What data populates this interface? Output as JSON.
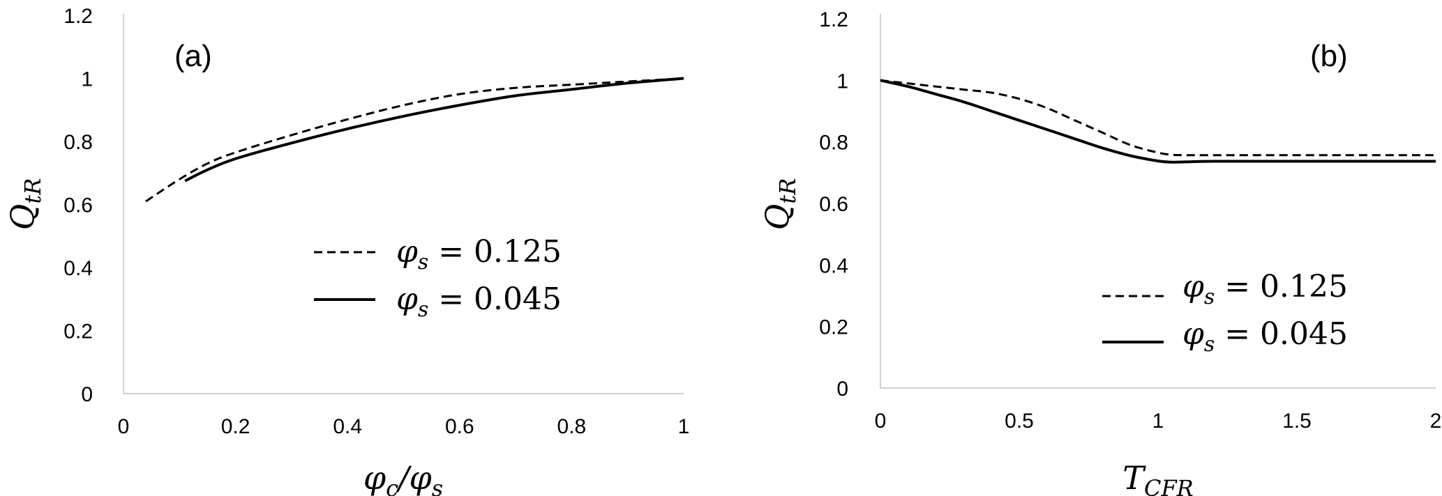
{
  "chart_data": [
    {
      "type": "line",
      "panel_label": "(a)",
      "xlabel": "φc/φs",
      "ylabel": "QtR",
      "xlim": [
        0,
        1
      ],
      "ylim": [
        0,
        1.2
      ],
      "xticks": [
        "0",
        "0.2",
        "0.4",
        "0.6",
        "0.8",
        "1"
      ],
      "yticks": [
        "0",
        "0.2",
        "0.4",
        "0.6",
        "0.8",
        "1",
        "1.2"
      ],
      "grid": false,
      "legend_position": "center-right",
      "series": [
        {
          "name": "φs = 0.125",
          "style": "dashed",
          "x": [
            0.04,
            0.1,
            0.15,
            0.2,
            0.3,
            0.4,
            0.5,
            0.6,
            0.7,
            0.8,
            0.9,
            1.0
          ],
          "y": [
            0.61,
            0.68,
            0.73,
            0.765,
            0.82,
            0.87,
            0.915,
            0.95,
            0.97,
            0.98,
            0.99,
            1.0
          ]
        },
        {
          "name": "φs = 0.045",
          "style": "solid",
          "x": [
            0.11,
            0.15,
            0.2,
            0.3,
            0.4,
            0.5,
            0.6,
            0.7,
            0.8,
            0.9,
            1.0
          ],
          "y": [
            0.675,
            0.71,
            0.745,
            0.795,
            0.84,
            0.88,
            0.915,
            0.945,
            0.965,
            0.985,
            1.0
          ]
        }
      ]
    },
    {
      "type": "line",
      "panel_label": "(b)",
      "xlabel": "TCFR",
      "ylabel": "QtR",
      "xlim": [
        0,
        2
      ],
      "ylim": [
        0,
        1.2
      ],
      "xticks": [
        "0",
        "0.5",
        "1",
        "1.5",
        "2"
      ],
      "yticks": [
        "0",
        "0.2",
        "0.4",
        "0.6",
        "0.8",
        "1",
        "1.2"
      ],
      "grid": false,
      "legend_position": "bottom-right",
      "series": [
        {
          "name": "φs = 0.125",
          "style": "dashed",
          "x": [
            0,
            0.1,
            0.2,
            0.3,
            0.4,
            0.5,
            0.6,
            0.7,
            0.8,
            0.9,
            1.0,
            1.05,
            1.1,
            1.2,
            1.5,
            2.0
          ],
          "y": [
            1.0,
            0.99,
            0.98,
            0.97,
            0.96,
            0.94,
            0.91,
            0.87,
            0.83,
            0.79,
            0.765,
            0.758,
            0.757,
            0.757,
            0.757,
            0.757
          ]
        },
        {
          "name": "φs = 0.045",
          "style": "solid",
          "x": [
            0,
            0.1,
            0.2,
            0.3,
            0.4,
            0.5,
            0.6,
            0.7,
            0.8,
            0.9,
            1.0,
            1.05,
            1.1,
            1.2,
            1.5,
            2.0
          ],
          "y": [
            1.0,
            0.98,
            0.955,
            0.93,
            0.9,
            0.87,
            0.84,
            0.81,
            0.78,
            0.755,
            0.738,
            0.734,
            0.735,
            0.737,
            0.737,
            0.737
          ]
        }
      ]
    }
  ]
}
